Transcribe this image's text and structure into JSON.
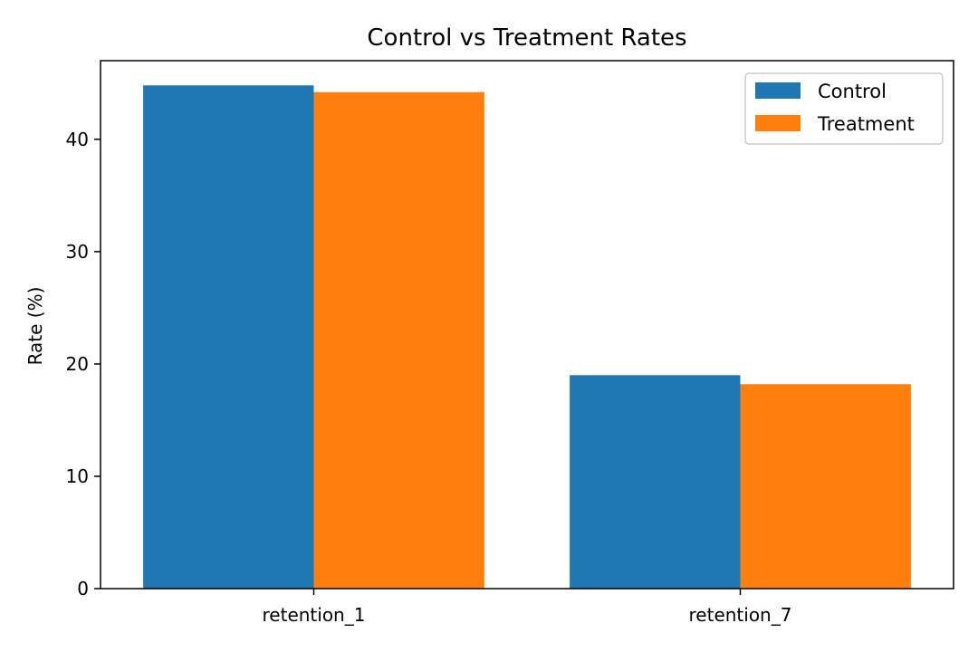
{
  "chart_data": {
    "type": "bar",
    "title": "Control vs Treatment Rates",
    "xlabel": "",
    "ylabel": "Rate (%)",
    "categories": [
      "retention_1",
      "retention_7"
    ],
    "series": [
      {
        "name": "Control",
        "values": [
          44.8,
          19.0
        ],
        "color": "#1f77b4"
      },
      {
        "name": "Treatment",
        "values": [
          44.2,
          18.2
        ],
        "color": "#ff7f0e"
      }
    ],
    "ylim": [
      0,
      47.0
    ],
    "yticks": [
      0,
      10,
      20,
      30,
      40
    ],
    "grid": false,
    "legend_position": "top-right"
  }
}
